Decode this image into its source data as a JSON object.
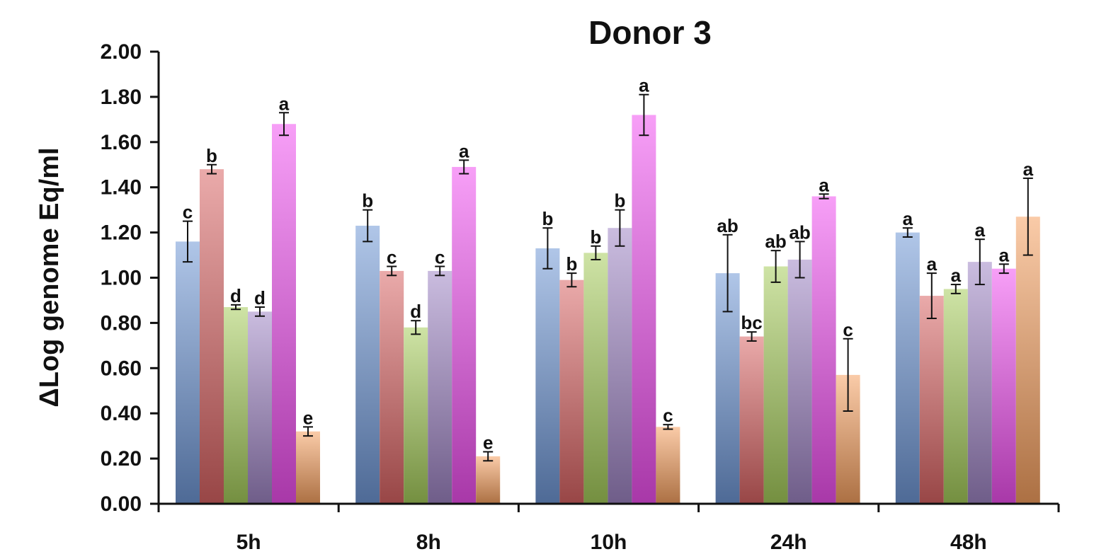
{
  "chart_data": {
    "type": "bar",
    "title": "Donor 3",
    "xlabel": "",
    "ylabel": "ΔLog genome Eq/ml",
    "ylim": [
      0,
      2
    ],
    "yticks": [
      "0.00",
      "0.20",
      "0.40",
      "0.60",
      "0.80",
      "1.00",
      "1.20",
      "1.40",
      "1.60",
      "1.80",
      "2.00"
    ],
    "grid": false,
    "legend": "none",
    "categories": [
      "5h",
      "8h",
      "10h",
      "24h",
      "48h"
    ],
    "series": [
      {
        "color": "#6f97d6",
        "values": [
          1.16,
          1.23,
          1.13,
          1.02,
          1.2
        ],
        "errors": [
          0.09,
          0.07,
          0.09,
          0.17,
          0.02
        ],
        "labels": [
          "c",
          "b",
          "b",
          "ab",
          "a"
        ]
      },
      {
        "color": "#d96464",
        "values": [
          1.48,
          1.03,
          0.99,
          0.74,
          0.92
        ],
        "errors": [
          0.02,
          0.02,
          0.03,
          0.02,
          0.1
        ],
        "labels": [
          "b",
          "c",
          "b",
          "bc",
          "a"
        ]
      },
      {
        "color": "#a6cc5c",
        "values": [
          0.87,
          0.78,
          1.11,
          1.05,
          0.95
        ],
        "errors": [
          0.01,
          0.03,
          0.03,
          0.07,
          0.02
        ],
        "labels": [
          "d",
          "d",
          "b",
          "ab",
          "a"
        ]
      },
      {
        "color": "#9f85c4",
        "values": [
          0.85,
          1.03,
          1.22,
          1.08,
          1.07
        ],
        "errors": [
          0.02,
          0.02,
          0.08,
          0.08,
          0.1
        ],
        "labels": [
          "d",
          "c",
          "b",
          "ab",
          "a"
        ]
      },
      {
        "color": "#f050f0",
        "values": [
          1.68,
          1.49,
          1.72,
          1.36,
          1.04
        ],
        "errors": [
          0.05,
          0.03,
          0.09,
          0.01,
          0.02
        ],
        "labels": [
          "a",
          "a",
          "a",
          "a",
          "a"
        ]
      },
      {
        "color": "#f5a060",
        "values": [
          0.32,
          0.21,
          0.34,
          0.57,
          1.27
        ],
        "errors": [
          0.02,
          0.02,
          0.01,
          0.16,
          0.17
        ],
        "labels": [
          "e",
          "e",
          "c",
          "c",
          "a"
        ]
      }
    ]
  }
}
